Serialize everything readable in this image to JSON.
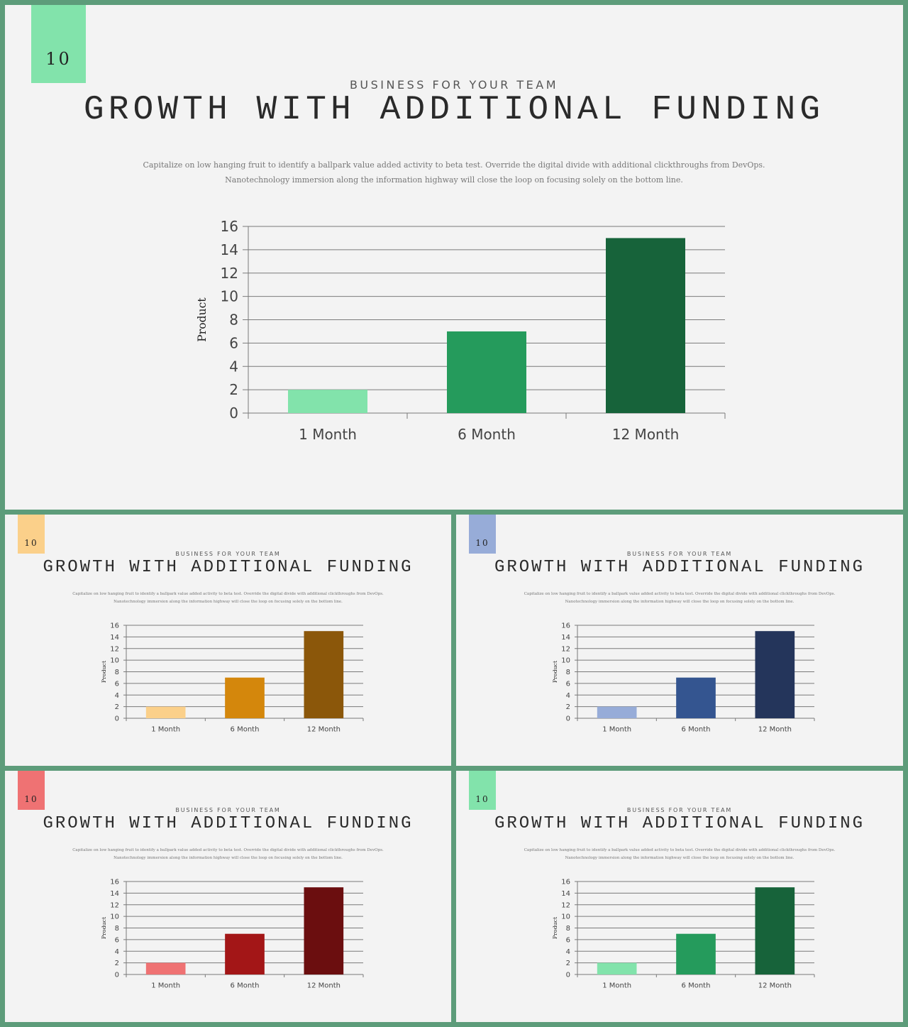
{
  "slide": {
    "badge": "10",
    "subtitle": "BUSINESS FOR YOUR TEAM",
    "title": "GROWTH WITH ADDITIONAL FUNDING",
    "description": "Capitalize on low hanging fruit to identify a ballpark value added activity to beta test. Override the digital divide with additional clickthroughs from DevOps. Nanotechnology immersion along the information highway will close the loop on focusing solely on the bottom line."
  },
  "colors": {
    "frame": "#5d9c7a",
    "slide_bg": "#f3f3f3"
  },
  "variants": [
    {
      "badge_color": "#82e3ab",
      "bar_colors": [
        "#82e3ab",
        "#259b5c",
        "#17633a"
      ]
    },
    {
      "badge_color": "#fbd08a",
      "bar_colors": [
        "#fbd08a",
        "#d4870c",
        "#8b570a"
      ]
    },
    {
      "badge_color": "#97acd8",
      "bar_colors": [
        "#97acd8",
        "#345590",
        "#24355b"
      ]
    },
    {
      "badge_color": "#ef7273",
      "bar_colors": [
        "#ef7273",
        "#a31617",
        "#6b0e0f"
      ]
    },
    {
      "badge_color": "#82e3ab",
      "bar_colors": [
        "#82e3ab",
        "#259b5c",
        "#17633a"
      ]
    }
  ],
  "chart_data": {
    "type": "bar",
    "categories": [
      "1 Month",
      "6 Month",
      "12 Month"
    ],
    "values": [
      2,
      7,
      15
    ],
    "ylabel": "Product",
    "ylim": [
      0,
      16
    ],
    "yticks": [
      "0",
      "2",
      "4",
      "6",
      "8",
      "10",
      "12",
      "14",
      "16"
    ],
    "grid": true
  }
}
